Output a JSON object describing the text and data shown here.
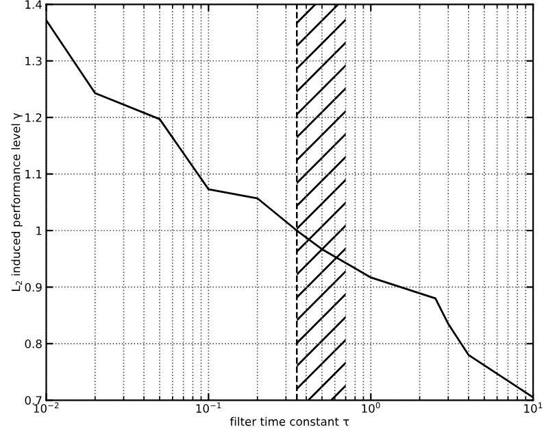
{
  "chart_data": {
    "type": "line",
    "xlabel": "filter time constant τ",
    "ylabel": "L$_{2}$ induced performance level γ",
    "x": [
      0.01,
      0.02,
      0.05,
      0.1,
      0.2,
      0.35,
      0.5,
      1,
      2.5,
      3,
      4,
      10
    ],
    "series": [
      {
        "color": "#000000",
        "values": [
          1.372,
          1.243,
          1.197,
          1.073,
          1.057,
          1.0,
          0.967,
          0.917,
          0.88,
          0.835,
          0.78,
          0.705
        ]
      }
    ],
    "log": "x",
    "xlim": [
      0.01,
      10
    ],
    "ylim": [
      0.7,
      1.4
    ],
    "xticks": [
      {
        "value": 0.01,
        "label": "10$^{−2}$"
      },
      {
        "value": 0.1,
        "label": "10$^{−1}$"
      },
      {
        "value": 1,
        "label": "10$^{0}$"
      },
      {
        "value": 10,
        "label": "10$^{1}$"
      }
    ],
    "yticks": [
      0.7,
      0.8,
      0.9,
      1,
      1.1,
      1.2,
      1.3,
      1.4
    ],
    "grid": true,
    "line_style": "solid",
    "marker": "none",
    "ref_lines": [
      {
        "axis": "x",
        "value": 0.35,
        "color": "#000000",
        "line_style": "dashed"
      }
    ],
    "bands": [
      {
        "axis": "x",
        "from": 0.35,
        "to": 0.7,
        "color": "#000000"
      }
    ]
  }
}
